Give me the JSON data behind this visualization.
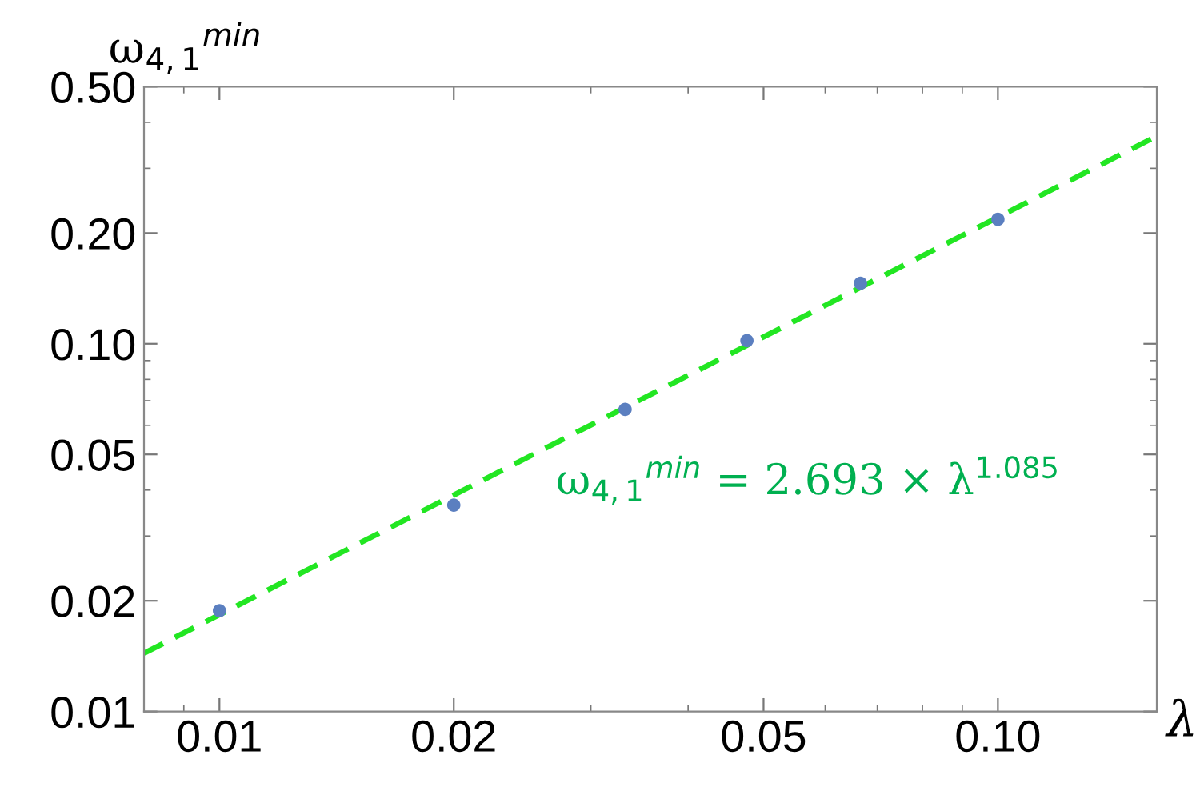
{
  "chart_data": {
    "type": "scatter",
    "xlabel": "λ",
    "ylabel": "ω$_{4,1}$$^{min}$",
    "log": "xy",
    "grid": false,
    "marker": "circle",
    "xlim": [
      0.008,
      0.16
    ],
    "ylim": [
      0.01,
      0.5
    ],
    "xticks": [
      0.01,
      0.02,
      0.05,
      {
        "value": 0.1,
        "label": "0.10"
      }
    ],
    "yticks": [
      0.01,
      0.02,
      0.05,
      {
        "value": 0.1,
        "label": "0.10"
      },
      {
        "value": 0.2,
        "label": "0.20"
      },
      {
        "value": 0.5,
        "label": "0.50"
      }
    ],
    "series": [
      {
        "type": "line",
        "color": "#22e622",
        "line_style": "dashed",
        "marker": "none",
        "x": [
          0.008,
          0.16
        ],
        "values": [
          0.0144,
          0.367
        ]
      },
      {
        "color": "#5b7fc0",
        "x": [
          0.01,
          0.02,
          0.0332,
          0.0476,
          0.0666,
          0.1
        ],
        "values": [
          0.0188,
          0.0364,
          0.0663,
          0.102,
          0.146,
          0.218
        ]
      }
    ],
    "annotations": [
      "ω$_{4,1}$$^{min}$ = 2.693 × λ$^{1.085}$"
    ]
  }
}
